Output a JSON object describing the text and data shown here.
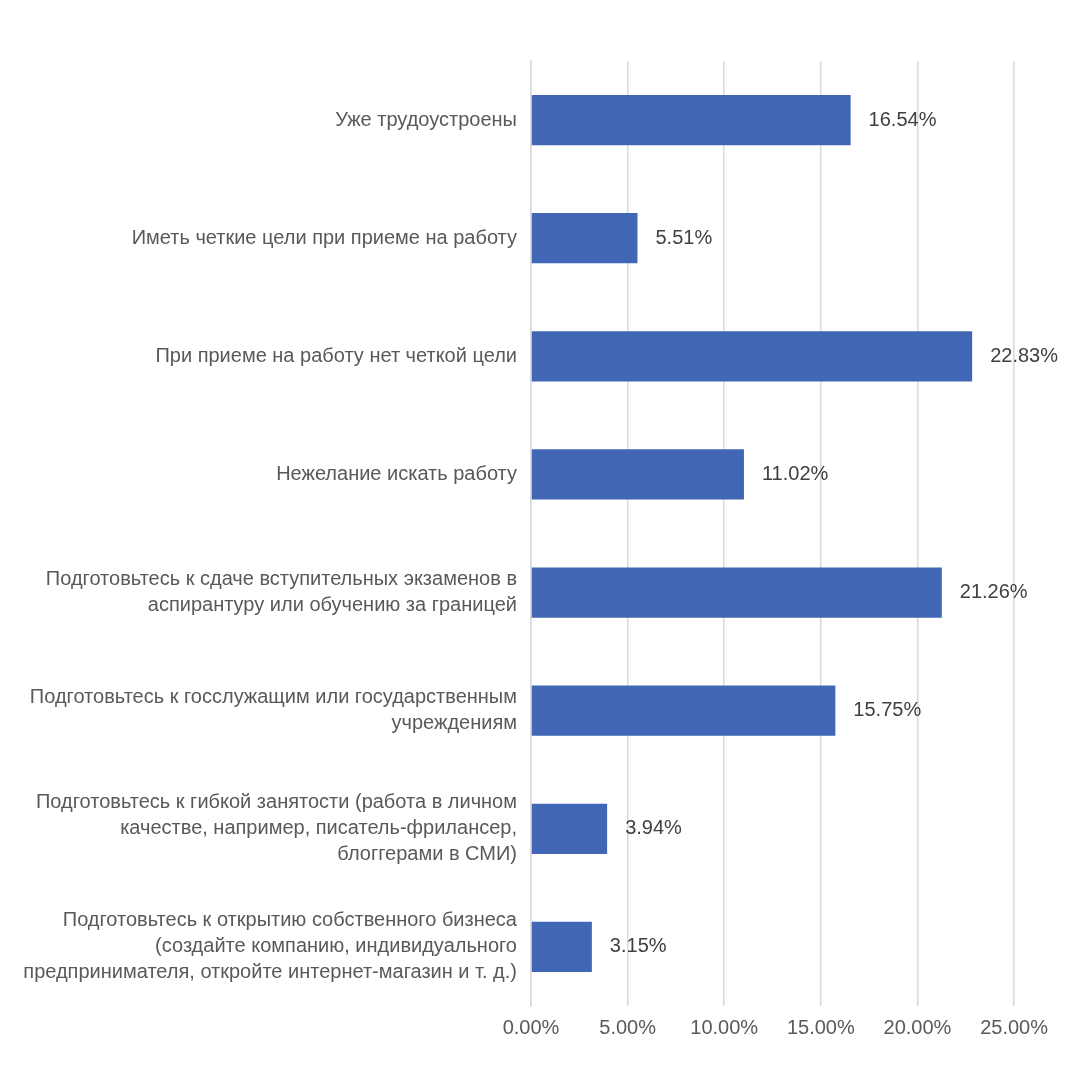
{
  "chart_data": {
    "type": "bar",
    "orientation": "horizontal",
    "categories": [
      "Уже трудоустроены",
      "Иметь четкие цели при приеме на работу",
      "При приеме на работу нет четкой цели",
      "Нежелание искать работу",
      "Подготовьтесь к сдаче вступительных экзаменов в аспирантуру или обучению за границей",
      "Подготовьтесь к госслужащим или государственным учреждениям",
      "Подготовьтесь к гибкой занятости (работа в личном качестве, например, писатель-фрилансер, блоггерами в СМИ)",
      "Подготовьтесь к открытию собственного бизнеса (создайте компанию, индивидуального предпринимателя, откройте интернет-магазин и т. д.)"
    ],
    "values": [
      16.54,
      5.51,
      22.83,
      11.02,
      21.26,
      15.75,
      3.94,
      3.15
    ],
    "value_labels": [
      "16.54%",
      "5.51%",
      "22.83%",
      "11.02%",
      "21.26%",
      "15.75%",
      "3.94%",
      "3.15%"
    ],
    "color": "#4166b5",
    "xlim": [
      0,
      25
    ],
    "xticks": [
      {
        "value": 0,
        "label": "0.00%"
      },
      {
        "value": 5,
        "label": "5.00%"
      },
      {
        "value": 10,
        "label": "10.00%"
      },
      {
        "value": 15,
        "label": "15.00%"
      },
      {
        "value": 20,
        "label": "20.00%"
      },
      {
        "value": 25,
        "label": "25.00%"
      }
    ],
    "grid": "x",
    "legend": false
  }
}
